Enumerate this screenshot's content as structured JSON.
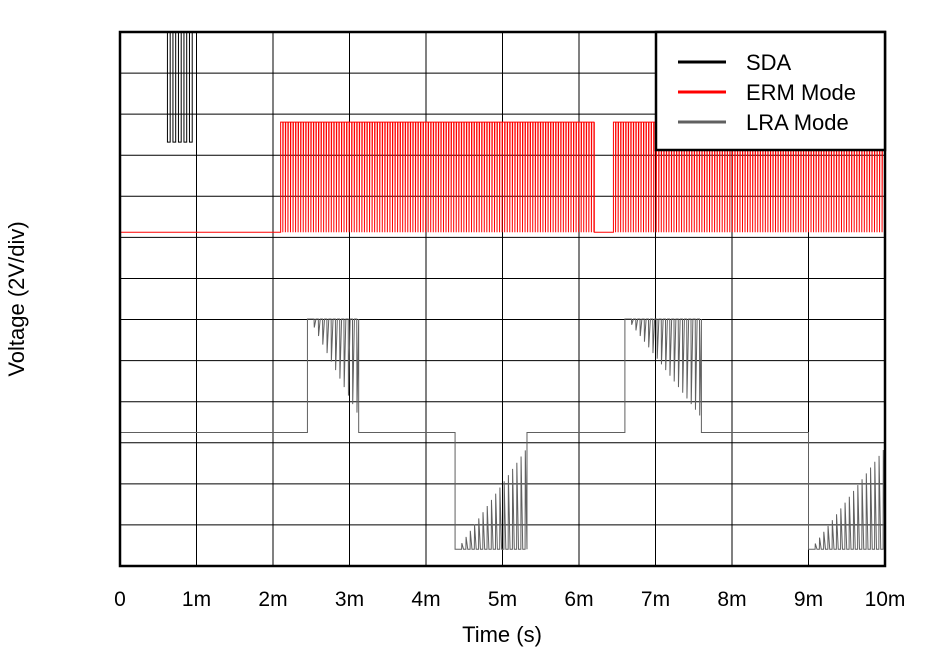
{
  "chart_data": {
    "type": "line",
    "xlabel": "Time (s)",
    "ylabel": "Voltage (2V/div)",
    "xlim": [
      0,
      10
    ],
    "ylim": [
      0,
      8
    ],
    "grid": true,
    "x_ticks": [
      0,
      1,
      2,
      3,
      4,
      5,
      6,
      7,
      8,
      9,
      10
    ],
    "x_tick_labels": [
      "0",
      "1m",
      "2m",
      "3m",
      "4m",
      "5m",
      "6m",
      "7m",
      "8m",
      "9m",
      "10m"
    ],
    "legend_position": "top-right",
    "series": [
      {
        "name": "SDA",
        "color": "#000000",
        "baseline": 8.0,
        "low": 6.35,
        "segments": [
          {
            "start": 0.62,
            "end": 0.98,
            "frequency": 14,
            "duty": 0.5
          }
        ]
      },
      {
        "name": "ERM Mode",
        "color": "#ff0000",
        "baseline": 5.0,
        "high": 6.65,
        "segments": [
          {
            "start": 2.1,
            "end": 6.2,
            "frequency": 30,
            "duty": 0.85
          },
          {
            "start": 6.45,
            "end": 10.0,
            "frequency": 30,
            "duty": 0.85
          }
        ]
      },
      {
        "name": "LRA Mode",
        "color": "#606060",
        "baseline": 2.0,
        "high": 3.7,
        "low": 0.25,
        "segments": [
          {
            "start": 2.45,
            "end": 3.12,
            "frequency": 18,
            "direction": "up"
          },
          {
            "start": 4.38,
            "end": 5.32,
            "frequency": 18,
            "direction": "down"
          },
          {
            "start": 6.6,
            "end": 7.6,
            "frequency": 18,
            "direction": "up"
          },
          {
            "start": 9.0,
            "end": 10.0,
            "frequency": 18,
            "direction": "down"
          }
        ]
      }
    ]
  }
}
